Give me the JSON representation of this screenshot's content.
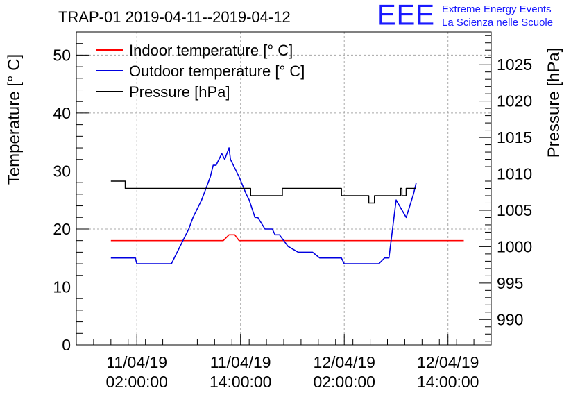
{
  "logo": {
    "mark": "EEE",
    "line1": "Extreme Energy Events",
    "line2": "La Scienza nelle Scuole"
  },
  "colors": {
    "indoor": "#ff0000",
    "outdoor": "#0000e0",
    "pressure": "#000000",
    "grid": "#a8a8a8"
  },
  "chart_data": {
    "type": "line",
    "title": "TRAP-01 2019-04-11--2019-04-12",
    "ylabel": "Temperature [° C]",
    "y2label": "Pressure [hPa]",
    "ylim": [
      0,
      54
    ],
    "y2lim": [
      986.5,
      1029.5
    ],
    "yticks": [
      0,
      10,
      20,
      30,
      40,
      50
    ],
    "y2ticks": [
      990,
      995,
      1000,
      1005,
      1010,
      1015,
      1020,
      1025
    ],
    "xlim": [
      "2019-04-10 19:00",
      "2019-04-12 19:00"
    ],
    "xticks": [
      {
        "x": "2019-04-11 02:00",
        "line1": "11/04/19",
        "line2": "02:00:00"
      },
      {
        "x": "2019-04-11 14:00",
        "line1": "11/04/19",
        "line2": "14:00:00"
      },
      {
        "x": "2019-04-12 02:00",
        "line1": "12/04/19",
        "line2": "02:00:00"
      },
      {
        "x": "2019-04-12 14:00",
        "line1": "12/04/19",
        "line2": "14:00:00"
      }
    ],
    "grid": true,
    "legend_position": "top-left",
    "series": [
      {
        "name": "Indoor temperature [° C]",
        "axis": "left",
        "points": [
          [
            "2019-04-10 23:00",
            18
          ],
          [
            "2019-04-11 04:00",
            18
          ],
          [
            "2019-04-11 09:00",
            18
          ],
          [
            "2019-04-11 12:00",
            18
          ],
          [
            "2019-04-11 12:40",
            19
          ],
          [
            "2019-04-11 13:20",
            19
          ],
          [
            "2019-04-11 13:50",
            18
          ],
          [
            "2019-04-11 18:00",
            18
          ],
          [
            "2019-04-12 02:00",
            18
          ],
          [
            "2019-04-12 08:00",
            18
          ],
          [
            "2019-04-12 15:50",
            18
          ]
        ]
      },
      {
        "name": "Outdoor temperature [° C]",
        "axis": "left",
        "points": [
          [
            "2019-04-10 23:00",
            15
          ],
          [
            "2019-04-11 01:50",
            15
          ],
          [
            "2019-04-11 02:00",
            14
          ],
          [
            "2019-04-11 06:00",
            14
          ],
          [
            "2019-04-11 07:00",
            17
          ],
          [
            "2019-04-11 08:00",
            20
          ],
          [
            "2019-04-11 08:30",
            22
          ],
          [
            "2019-04-11 09:30",
            25
          ],
          [
            "2019-04-11 10:00",
            27
          ],
          [
            "2019-04-11 10:30",
            29
          ],
          [
            "2019-04-11 10:50",
            31
          ],
          [
            "2019-04-11 11:10",
            31
          ],
          [
            "2019-04-11 11:50",
            33
          ],
          [
            "2019-04-11 12:10",
            32
          ],
          [
            "2019-04-11 12:40",
            34
          ],
          [
            "2019-04-11 12:50",
            32
          ],
          [
            "2019-04-11 13:50",
            29
          ],
          [
            "2019-04-11 14:40",
            26
          ],
          [
            "2019-04-11 15:00",
            25
          ],
          [
            "2019-04-11 15:40",
            22
          ],
          [
            "2019-04-11 16:00",
            22
          ],
          [
            "2019-04-11 16:50",
            20
          ],
          [
            "2019-04-11 17:40",
            20
          ],
          [
            "2019-04-11 18:00",
            19
          ],
          [
            "2019-04-11 18:30",
            19
          ],
          [
            "2019-04-11 19:30",
            17
          ],
          [
            "2019-04-11 20:40",
            16
          ],
          [
            "2019-04-11 22:20",
            16
          ],
          [
            "2019-04-11 23:10",
            15
          ],
          [
            "2019-04-12 01:40",
            15
          ],
          [
            "2019-04-12 02:00",
            14
          ],
          [
            "2019-04-12 06:00",
            14
          ],
          [
            "2019-04-12 06:40",
            15
          ],
          [
            "2019-04-12 07:10",
            15
          ],
          [
            "2019-04-12 08:00",
            25
          ],
          [
            "2019-04-12 09:10",
            22
          ],
          [
            "2019-04-12 10:00",
            26
          ],
          [
            "2019-04-12 10:20",
            28
          ]
        ]
      },
      {
        "name": "Pressure [hPa]",
        "axis": "right",
        "points": [
          [
            "2019-04-10 23:00",
            1009
          ],
          [
            "2019-04-11 00:20",
            1009
          ],
          [
            "2019-04-11 00:40",
            1008
          ],
          [
            "2019-04-11 13:50",
            1008
          ],
          [
            "2019-04-11 14:40",
            1008
          ],
          [
            "2019-04-11 15:10",
            1007
          ],
          [
            "2019-04-11 18:00",
            1007
          ],
          [
            "2019-04-11 18:50",
            1008
          ],
          [
            "2019-04-12 01:10",
            1008
          ],
          [
            "2019-04-12 01:40",
            1007
          ],
          [
            "2019-04-12 04:20",
            1007
          ],
          [
            "2019-04-12 04:50",
            1006
          ],
          [
            "2019-04-12 05:30",
            1007
          ],
          [
            "2019-04-12 07:50",
            1007
          ],
          [
            "2019-04-12 08:30",
            1008
          ],
          [
            "2019-04-12 08:40",
            1007
          ],
          [
            "2019-04-12 09:10",
            1008
          ],
          [
            "2019-04-12 10:20",
            1008
          ]
        ]
      }
    ]
  }
}
